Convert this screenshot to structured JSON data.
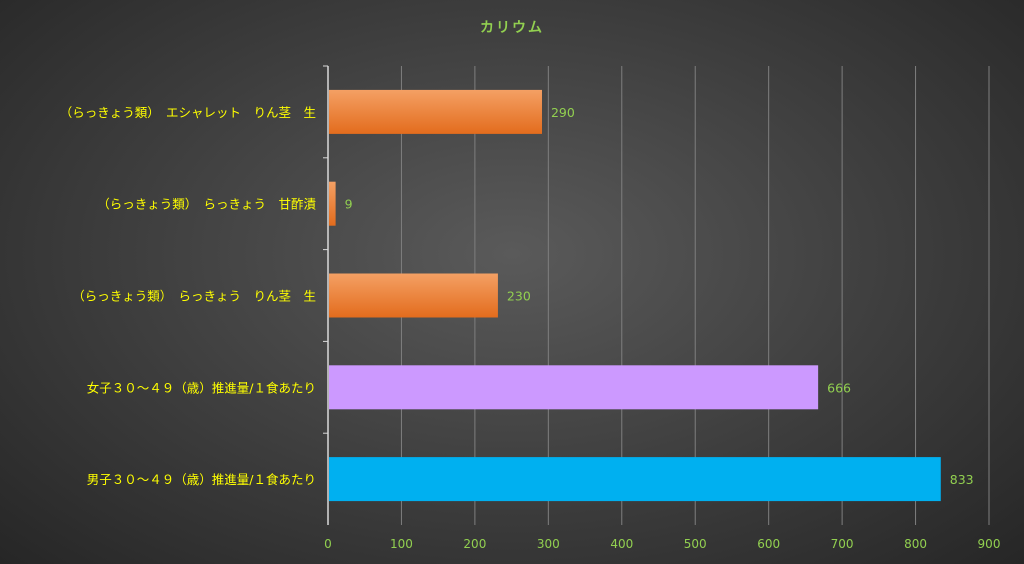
{
  "chart_data": {
    "type": "bar",
    "orientation": "horizontal",
    "title": "カリウム",
    "categories": [
      "（らっきょう類）　エシャレット　りん茎　生",
      "（らっきょう類）　らっきょう　甘酢漬",
      "（らっきょう類）　らっきょう　りん茎　生",
      "女子３０～４９（歳）推進量/１食あたり",
      "男子３０～４９（歳）推進量/１食あたり"
    ],
    "values": [
      290,
      9,
      230,
      666,
      833
    ],
    "data_labels": [
      "290",
      "9",
      "230",
      "666",
      "833"
    ],
    "bar_colors": [
      "#ed7d31",
      "#ed7d31",
      "#ed7d31",
      "#cc99ff",
      "#00b0f0"
    ],
    "xlim": [
      0,
      900
    ],
    "x_ticks": [
      0,
      100,
      200,
      300,
      400,
      500,
      600,
      700,
      800,
      900
    ],
    "grid": true,
    "legend": "none",
    "colors": {
      "title": "#92d050",
      "category_label": "#ffff00",
      "tick_label": "#92d050",
      "data_label": "#92d050",
      "gridline": "#7f7f7f",
      "axis": "#d9d9d9"
    }
  }
}
